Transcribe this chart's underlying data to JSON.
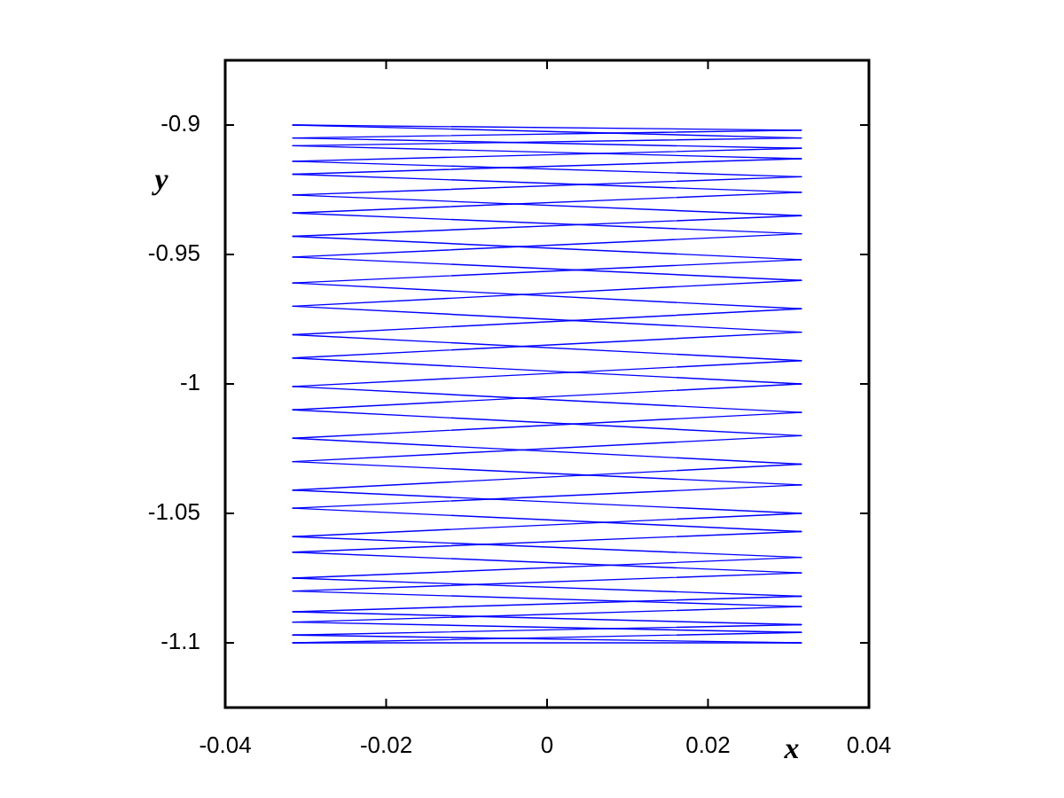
{
  "chart_data": {
    "type": "line",
    "xlabel": "x",
    "ylabel": "y",
    "marker": "none",
    "x": [
      -0.0316,
      0.0316
    ],
    "series": [
      {
        "color": "#0000ff",
        "values": [
          -0.9,
          -0.902
        ]
      },
      {
        "color": "#0000ff",
        "values": [
          -0.905,
          -0.902
        ]
      },
      {
        "color": "#0000ff",
        "values": [
          -0.905,
          -0.909
        ]
      },
      {
        "color": "#0000ff",
        "values": [
          -0.914,
          -0.909
        ]
      },
      {
        "color": "#0000ff",
        "values": [
          -0.914,
          -0.92
        ]
      },
      {
        "color": "#0000ff",
        "values": [
          -0.927,
          -0.92
        ]
      },
      {
        "color": "#0000ff",
        "values": [
          -0.927,
          -0.935
        ]
      },
      {
        "color": "#0000ff",
        "values": [
          -0.943,
          -0.935
        ]
      },
      {
        "color": "#0000ff",
        "values": [
          -0.943,
          -0.952
        ]
      },
      {
        "color": "#0000ff",
        "values": [
          -0.961,
          -0.952
        ]
      },
      {
        "color": "#0000ff",
        "values": [
          -0.961,
          -0.971
        ]
      },
      {
        "color": "#0000ff",
        "values": [
          -0.981,
          -0.971
        ]
      },
      {
        "color": "#0000ff",
        "values": [
          -0.981,
          -0.991
        ]
      },
      {
        "color": "#0000ff",
        "values": [
          -1.001,
          -0.991
        ]
      },
      {
        "color": "#0000ff",
        "values": [
          -1.001,
          -1.011
        ]
      },
      {
        "color": "#0000ff",
        "values": [
          -1.021,
          -1.011
        ]
      },
      {
        "color": "#0000ff",
        "values": [
          -1.021,
          -1.031
        ]
      },
      {
        "color": "#0000ff",
        "values": [
          -1.041,
          -1.031
        ]
      },
      {
        "color": "#0000ff",
        "values": [
          -1.041,
          -1.05
        ]
      },
      {
        "color": "#0000ff",
        "values": [
          -1.059,
          -1.05
        ]
      },
      {
        "color": "#0000ff",
        "values": [
          -1.059,
          -1.067
        ]
      },
      {
        "color": "#0000ff",
        "values": [
          -1.075,
          -1.067
        ]
      },
      {
        "color": "#0000ff",
        "values": [
          -1.075,
          -1.082
        ]
      },
      {
        "color": "#0000ff",
        "values": [
          -1.088,
          -1.082
        ]
      },
      {
        "color": "#0000ff",
        "values": [
          -1.088,
          -1.093
        ]
      },
      {
        "color": "#0000ff",
        "values": [
          -1.097,
          -1.093
        ]
      },
      {
        "color": "#0000ff",
        "values": [
          -1.097,
          -1.1
        ]
      },
      {
        "color": "#0000ff",
        "values": [
          -1.1,
          -1.1
        ]
      },
      {
        "color": "#0000ff",
        "values": [
          -1.1,
          -1.096
        ]
      },
      {
        "color": "#0000ff",
        "values": [
          -1.092,
          -1.096
        ]
      },
      {
        "color": "#0000ff",
        "values": [
          -1.092,
          -1.086
        ]
      },
      {
        "color": "#0000ff",
        "values": [
          -1.08,
          -1.086
        ]
      },
      {
        "color": "#0000ff",
        "values": [
          -1.08,
          -1.073
        ]
      },
      {
        "color": "#0000ff",
        "values": [
          -1.065,
          -1.073
        ]
      },
      {
        "color": "#0000ff",
        "values": [
          -1.065,
          -1.057
        ]
      },
      {
        "color": "#0000ff",
        "values": [
          -1.048,
          -1.057
        ]
      },
      {
        "color": "#0000ff",
        "values": [
          -1.048,
          -1.039
        ]
      },
      {
        "color": "#0000ff",
        "values": [
          -1.03,
          -1.039
        ]
      },
      {
        "color": "#0000ff",
        "values": [
          -1.03,
          -1.02
        ]
      },
      {
        "color": "#0000ff",
        "values": [
          -1.01,
          -1.02
        ]
      },
      {
        "color": "#0000ff",
        "values": [
          -1.01,
          -1
        ]
      },
      {
        "color": "#0000ff",
        "values": [
          -0.99,
          -1
        ]
      },
      {
        "color": "#0000ff",
        "values": [
          -0.99,
          -0.98
        ]
      },
      {
        "color": "#0000ff",
        "values": [
          -0.97,
          -0.98
        ]
      },
      {
        "color": "#0000ff",
        "values": [
          -0.97,
          -0.96
        ]
      },
      {
        "color": "#0000ff",
        "values": [
          -0.951,
          -0.96
        ]
      },
      {
        "color": "#0000ff",
        "values": [
          -0.951,
          -0.942
        ]
      },
      {
        "color": "#0000ff",
        "values": [
          -0.934,
          -0.942
        ]
      },
      {
        "color": "#0000ff",
        "values": [
          -0.934,
          -0.926
        ]
      },
      {
        "color": "#0000ff",
        "values": [
          -0.919,
          -0.926
        ]
      },
      {
        "color": "#0000ff",
        "values": [
          -0.919,
          -0.913
        ]
      },
      {
        "color": "#0000ff",
        "values": [
          -0.908,
          -0.913
        ]
      },
      {
        "color": "#0000ff",
        "values": [
          -0.908,
          -0.905
        ]
      },
      {
        "color": "#0000ff",
        "values": [
          -0.9,
          -0.905
        ]
      }
    ],
    "xlim": [
      -0.04,
      0.04
    ],
    "xticks": [
      -0.04,
      -0.02,
      0,
      0.02,
      0.04
    ],
    "ylim": [
      -1.125,
      -0.875
    ],
    "yticks": [
      -1.1,
      -1.05,
      -1,
      -0.95,
      -0.9
    ]
  }
}
